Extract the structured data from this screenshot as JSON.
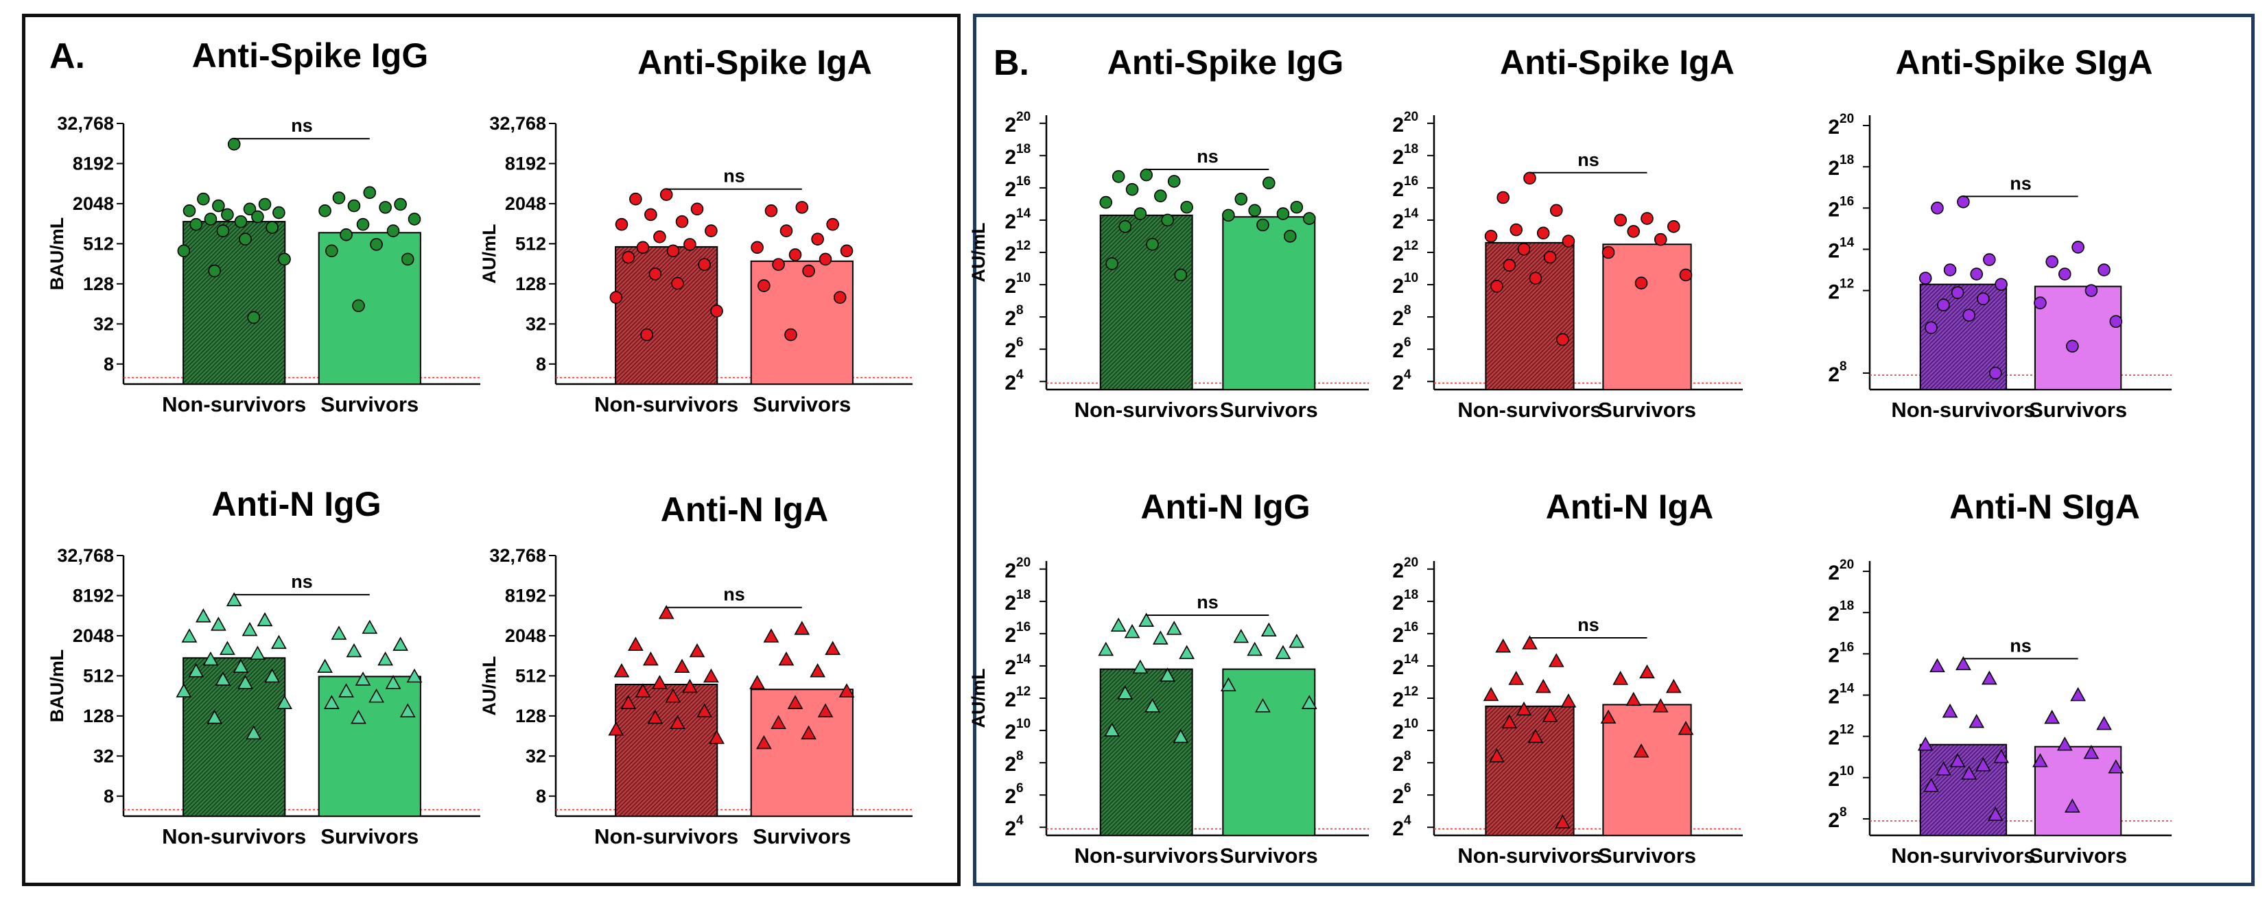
{
  "panels": {
    "a_label": "A.",
    "b_label": "B."
  },
  "colors": {
    "green_dark": "#2e7d3c",
    "green_light": "#3cc46e",
    "red_dark": "#c0393f",
    "red_light": "#ff7b7d",
    "purple_dark": "#8a3fc2",
    "purple_light": "#e07bf0",
    "dot_green": "#1f8a2d",
    "tri_green": "#4fd49a",
    "dot_red": "#e8141c",
    "tri_red": "#e8141c",
    "dot_purple": "#9b2ee0",
    "tri_purple": "#9b2ee0",
    "cutoff": "#e53935"
  },
  "chart_data": [
    {
      "id": "A-spike-igg",
      "type": "bar",
      "title": "Anti-Spike IgG",
      "ylabel": "BAU/mL",
      "scale": "log2",
      "ylim": [
        4,
        32768
      ],
      "yticks": [
        8,
        32,
        128,
        512,
        2048,
        8192,
        32768
      ],
      "yticklabels": [
        "8",
        "32",
        "128",
        "512",
        "2048",
        "8192",
        "32,768"
      ],
      "categories": [
        "Non-survivors",
        "Survivors"
      ],
      "bar_values": [
        1100,
        750
      ],
      "palette": "green",
      "marker": "circle",
      "cutoff": 5,
      "significance": "ns",
      "points": [
        [
          16000,
          2400,
          2000,
          1900,
          1700,
          1600,
          1500,
          1400,
          1300,
          1200,
          1100,
          1000,
          900,
          800,
          600,
          400,
          300,
          200,
          40
        ],
        [
          3000,
          2500,
          2000,
          1900,
          1800,
          1600,
          1200,
          1000,
          800,
          700,
          500,
          400,
          300,
          60
        ]
      ]
    },
    {
      "id": "A-spike-iga",
      "type": "bar",
      "title": "Anti-Spike IgA",
      "ylabel": "AU/mL",
      "scale": "log2",
      "ylim": [
        4,
        32768
      ],
      "yticks": [
        8,
        32,
        128,
        512,
        2048,
        8192,
        32768
      ],
      "yticklabels": [
        "8",
        "32",
        "128",
        "512",
        "2048",
        "8192",
        "32,768"
      ],
      "categories": [
        "Non-survivors",
        "Survivors"
      ],
      "bar_values": [
        460,
        280
      ],
      "palette": "red",
      "marker": "circle",
      "cutoff": 5,
      "significance": "ns",
      "points": [
        [
          2800,
          2400,
          1700,
          1400,
          1100,
          1000,
          800,
          650,
          500,
          450,
          400,
          320,
          250,
          180,
          130,
          80,
          50,
          22
        ],
        [
          1800,
          1600,
          1000,
          800,
          600,
          450,
          400,
          350,
          300,
          250,
          200,
          120,
          80,
          22
        ]
      ]
    },
    {
      "id": "A-n-igg",
      "type": "bar",
      "title": "Anti-N IgG",
      "ylabel": "BAU/mL",
      "scale": "log2",
      "ylim": [
        4,
        32768
      ],
      "yticks": [
        8,
        32,
        128,
        512,
        2048,
        8192,
        32768
      ],
      "yticklabels": [
        "8",
        "32",
        "128",
        "512",
        "2048",
        "8192",
        "32,768"
      ],
      "categories": [
        "Non-survivors",
        "Survivors"
      ],
      "bar_values": [
        950,
        500
      ],
      "palette": "green",
      "marker": "triangle",
      "cutoff": 5,
      "significance": "ns",
      "points": [
        [
          7000,
          4000,
          3500,
          3000,
          2500,
          2000,
          1600,
          1300,
          1100,
          900,
          700,
          600,
          500,
          450,
          400,
          300,
          200,
          120,
          70
        ],
        [
          2700,
          2200,
          1500,
          1200,
          900,
          700,
          500,
          450,
          400,
          300,
          250,
          200,
          150,
          120
        ]
      ]
    },
    {
      "id": "A-n-iga",
      "type": "bar",
      "title": "Anti-N IgA",
      "ylabel": "AU/mL",
      "scale": "log2",
      "ylim": [
        4,
        32768
      ],
      "yticks": [
        8,
        32,
        128,
        512,
        2048,
        8192,
        32768
      ],
      "yticklabels": [
        "8",
        "32",
        "128",
        "512",
        "2048",
        "8192",
        "32,768"
      ],
      "categories": [
        "Non-survivors",
        "Survivors"
      ],
      "bar_values": [
        380,
        320
      ],
      "palette": "red",
      "marker": "triangle",
      "cutoff": 5,
      "significance": "ns",
      "points": [
        [
          4500,
          1500,
          1200,
          900,
          700,
          600,
          500,
          400,
          350,
          300,
          250,
          200,
          150,
          120,
          100,
          80,
          60
        ],
        [
          2600,
          2000,
          1300,
          900,
          600,
          400,
          300,
          200,
          150,
          100,
          70,
          50
        ]
      ]
    },
    {
      "id": "B-spike-igg",
      "type": "bar",
      "title": "Anti-Spike IgG",
      "ylabel": "AU/mL",
      "scale": "log2",
      "ylim": [
        3.5,
        20.5
      ],
      "yticks": [
        4,
        6,
        8,
        10,
        12,
        14,
        16,
        18,
        20
      ],
      "tick_style": "power",
      "yticklabels": [
        "2",
        "2",
        "2",
        "2",
        "2",
        "2",
        "2",
        "2",
        "2"
      ],
      "yticksup": [
        "4",
        "6",
        "8",
        "10",
        "12",
        "14",
        "16",
        "18",
        "20"
      ],
      "categories": [
        "Non-survivors",
        "Survivors"
      ],
      "bar_values": [
        14.3,
        14.2
      ],
      "palette": "green",
      "marker": "circle",
      "cutoff": 3.9,
      "significance": "ns",
      "points": [
        [
          16.8,
          16.7,
          16.4,
          15.9,
          15.5,
          15.1,
          14.8,
          14.4,
          14.0,
          13.6,
          12.5,
          11.3,
          10.6
        ],
        [
          16.3,
          15.3,
          14.8,
          14.6,
          14.4,
          14.3,
          14.1,
          13.7,
          13.0
        ]
      ]
    },
    {
      "id": "B-spike-iga",
      "type": "bar",
      "title": "Anti-Spike IgA",
      "ylabel": "",
      "scale": "log2",
      "ylim": [
        3.5,
        20.5
      ],
      "yticks": [
        4,
        6,
        8,
        10,
        12,
        14,
        16,
        18,
        20
      ],
      "tick_style": "power",
      "yticklabels": [
        "2",
        "2",
        "2",
        "2",
        "2",
        "2",
        "2",
        "2",
        "2"
      ],
      "yticksup": [
        "4",
        "6",
        "8",
        "10",
        "12",
        "14",
        "16",
        "18",
        "20"
      ],
      "categories": [
        "Non-survivors",
        "Survivors"
      ],
      "bar_values": [
        12.6,
        12.5
      ],
      "palette": "red",
      "marker": "circle",
      "cutoff": 3.9,
      "significance": "ns",
      "points": [
        [
          16.6,
          15.4,
          14.6,
          13.4,
          13.2,
          13.0,
          12.7,
          12.2,
          11.7,
          11.2,
          10.4,
          9.9,
          6.6
        ],
        [
          14.1,
          14.0,
          13.6,
          13.3,
          12.8,
          12.0,
          10.6,
          10.1
        ]
      ]
    },
    {
      "id": "B-spike-siga",
      "type": "bar",
      "title": "Anti-Spike SIgA",
      "ylabel": "",
      "scale": "log2",
      "ylim": [
        7.2,
        20.5
      ],
      "yticks": [
        8,
        12,
        14,
        16,
        18,
        20
      ],
      "tick_style": "power",
      "yticklabels": [
        "2",
        "2",
        "2",
        "2",
        "2",
        "2"
      ],
      "yticksup": [
        "8",
        "12",
        "14",
        "16",
        "18",
        "20"
      ],
      "categories": [
        "Non-survivors",
        "Survivors"
      ],
      "bar_values": [
        12.3,
        12.2
      ],
      "palette": "purple",
      "marker": "circle",
      "cutoff": 7.9,
      "significance": "ns",
      "points": [
        [
          16.3,
          16.0,
          13.5,
          13.0,
          12.8,
          12.6,
          12.3,
          11.9,
          11.6,
          11.3,
          10.8,
          10.2,
          8.0
        ],
        [
          14.1,
          13.4,
          13.0,
          12.8,
          12.0,
          11.4,
          10.5,
          9.3
        ]
      ]
    },
    {
      "id": "B-n-igg",
      "type": "bar",
      "title": "Anti-N IgG",
      "ylabel": "AU/mL",
      "scale": "log2",
      "ylim": [
        3.5,
        20.5
      ],
      "yticks": [
        4,
        6,
        8,
        10,
        12,
        14,
        16,
        18,
        20
      ],
      "tick_style": "power",
      "yticklabels": [
        "2",
        "2",
        "2",
        "2",
        "2",
        "2",
        "2",
        "2",
        "2"
      ],
      "yticksup": [
        "4",
        "6",
        "8",
        "10",
        "12",
        "14",
        "16",
        "18",
        "20"
      ],
      "categories": [
        "Non-survivors",
        "Survivors"
      ],
      "bar_values": [
        13.8,
        13.8
      ],
      "palette": "green",
      "marker": "triangle",
      "cutoff": 3.9,
      "significance": "ns",
      "points": [
        [
          16.8,
          16.5,
          16.3,
          16.1,
          15.7,
          15.0,
          14.8,
          13.9,
          13.4,
          12.3,
          11.5,
          10.0,
          9.6
        ],
        [
          16.2,
          15.8,
          15.5,
          15.0,
          14.8,
          12.8,
          11.7,
          11.5
        ]
      ]
    },
    {
      "id": "B-n-iga",
      "type": "bar",
      "title": "Anti-N IgA",
      "ylabel": "",
      "scale": "log2",
      "ylim": [
        3.5,
        20.5
      ],
      "yticks": [
        4,
        6,
        8,
        10,
        12,
        14,
        16,
        18,
        20
      ],
      "tick_style": "power",
      "yticklabels": [
        "2",
        "2",
        "2",
        "2",
        "2",
        "2",
        "2",
        "2",
        "2"
      ],
      "yticksup": [
        "4",
        "6",
        "8",
        "10",
        "12",
        "14",
        "16",
        "18",
        "20"
      ],
      "categories": [
        "Non-survivors",
        "Survivors"
      ],
      "bar_values": [
        11.5,
        11.6
      ],
      "palette": "red",
      "marker": "triangle",
      "cutoff": 3.9,
      "significance": "ns",
      "points": [
        [
          15.4,
          15.2,
          14.3,
          13.2,
          12.7,
          12.2,
          11.8,
          11.3,
          10.9,
          10.5,
          9.6,
          8.4,
          4.3
        ],
        [
          13.6,
          13.2,
          12.7,
          11.9,
          11.5,
          10.8,
          10.1,
          8.7
        ]
      ]
    },
    {
      "id": "B-n-siga",
      "type": "bar",
      "title": "Anti-N SIgA",
      "ylabel": "",
      "scale": "log2",
      "ylim": [
        7.2,
        20.5
      ],
      "yticks": [
        8,
        10,
        12,
        14,
        16,
        18,
        20
      ],
      "tick_style": "power",
      "yticklabels": [
        "2",
        "2",
        "2",
        "2",
        "2",
        "2",
        "2"
      ],
      "yticksup": [
        "8",
        "10",
        "12",
        "14",
        "16",
        "18",
        "20"
      ],
      "categories": [
        "Non-survivors",
        "Survivors"
      ],
      "bar_values": [
        11.6,
        11.5
      ],
      "palette": "purple",
      "marker": "triangle",
      "cutoff": 7.9,
      "significance": "ns",
      "points": [
        [
          15.5,
          15.4,
          14.8,
          13.2,
          12.7,
          11.6,
          11.0,
          10.8,
          10.6,
          10.4,
          10.2,
          9.6,
          8.2
        ],
        [
          14.0,
          12.9,
          12.6,
          11.6,
          11.2,
          10.8,
          10.5,
          8.6
        ]
      ]
    }
  ]
}
